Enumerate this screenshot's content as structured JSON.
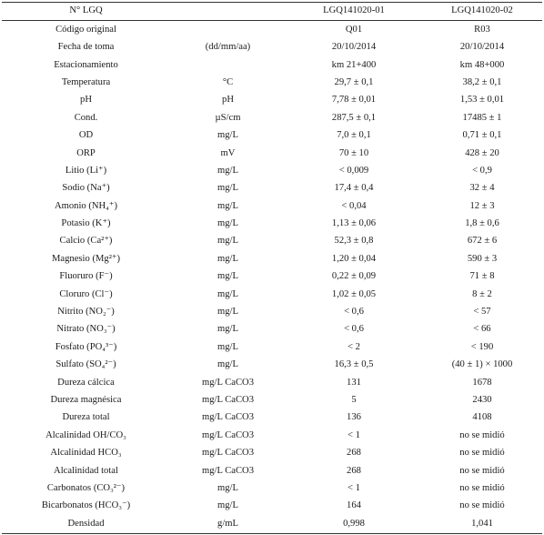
{
  "columns": [
    "N° LGQ",
    "",
    "LGQ141020-01",
    "LGQ141020-02"
  ],
  "rows": [
    {
      "p": "Código original",
      "u": "",
      "a": "Q01",
      "b": "R03"
    },
    {
      "p": "Fecha de toma",
      "u": "(dd/mm/aa)",
      "a": "20/10/2014",
      "b": "20/10/2014"
    },
    {
      "p": "Estacionamiento",
      "u": "",
      "a": "km 21+400",
      "b": "km 48+000"
    },
    {
      "p": "Temperatura",
      "u": "°C",
      "a": "29,7 ± 0,1",
      "b": "38,2 ± 0,1"
    },
    {
      "p": "pH",
      "u": "pH",
      "a": "7,78 ± 0,01",
      "b": "1,53 ± 0,01"
    },
    {
      "p": "Cond.",
      "u": "µS/cm",
      "a": "287,5 ± 0,1",
      "b": "17485 ± 1"
    },
    {
      "p": "OD",
      "u": "mg/L",
      "a": "7,0 ± 0,1",
      "b": "0,71 ± 0,1"
    },
    {
      "p": "ORP",
      "u": "mV",
      "a": "70 ± 10",
      "b": "428 ± 20"
    },
    {
      "p": "Litio (Li⁺)",
      "u": "mg/L",
      "a": "< 0,009",
      "b": "< 0,9"
    },
    {
      "p": "Sodio (Na⁺)",
      "u": "mg/L",
      "a": "17,4 ± 0,4",
      "b": "32 ± 4"
    },
    {
      "p": "Amonio (NH₄⁺)",
      "u": "mg/L",
      "a": "< 0,04",
      "b": "12 ± 3"
    },
    {
      "p": "Potasio (K⁺)",
      "u": "mg/L",
      "a": "1,13 ± 0,06",
      "b": "1,8 ± 0,6"
    },
    {
      "p": "Calcio (Ca²⁺)",
      "u": "mg/L",
      "a": "52,3 ± 0,8",
      "b": "672 ± 6"
    },
    {
      "p": "Magnesio (Mg²⁺)",
      "u": "mg/L",
      "a": "1,20 ± 0,04",
      "b": "590 ± 3"
    },
    {
      "p": "Fluoruro (F⁻)",
      "u": "mg/L",
      "a": "0,22 ± 0,09",
      "b": "71 ± 8"
    },
    {
      "p": "Cloruro (Cl⁻)",
      "u": "mg/L",
      "a": "1,02 ± 0,05",
      "b": "8 ± 2"
    },
    {
      "p": "Nitrito (NO₂⁻)",
      "u": "mg/L",
      "a": "< 0,6",
      "b": "< 57"
    },
    {
      "p": "Nitrato (NO₃⁻)",
      "u": "mg/L",
      "a": "< 0,6",
      "b": "< 66"
    },
    {
      "p": "Fosfato (PO₄³⁻)",
      "u": "mg/L",
      "a": "< 2",
      "b": "< 190"
    },
    {
      "p": "Sulfato (SO₄²⁻)",
      "u": "mg/L",
      "a": "16,3 ± 0,5",
      "b": "(40 ± 1) × 1000"
    },
    {
      "p": "Dureza cálcica",
      "u": "mg/L CaCO3",
      "a": "131",
      "b": "1678"
    },
    {
      "p": "Dureza magnésica",
      "u": "mg/L CaCO3",
      "a": "5",
      "b": "2430"
    },
    {
      "p": "Dureza total",
      "u": "mg/L CaCO3",
      "a": "136",
      "b": "4108"
    },
    {
      "p": "Alcalinidad OH/CO₃",
      "u": "mg/L CaCO3",
      "a": "< 1",
      "b": "no se midió"
    },
    {
      "p": "Alcalinidad HCO₃",
      "u": "mg/L CaCO3",
      "a": "268",
      "b": "no se midió"
    },
    {
      "p": "Alcalinidad total",
      "u": "mg/L CaCO3",
      "a": "268",
      "b": "no se midió"
    },
    {
      "p": "Carbonatos (CO₃²⁻)",
      "u": "mg/L",
      "a": "< 1",
      "b": "no se midió"
    },
    {
      "p": "Bicarbonatos (HCO₃⁻)",
      "u": "mg/L",
      "a": "164",
      "b": "no se midió"
    },
    {
      "p": "Densidad",
      "u": "g/mL",
      "a": "0,998",
      "b": "1,041"
    }
  ]
}
